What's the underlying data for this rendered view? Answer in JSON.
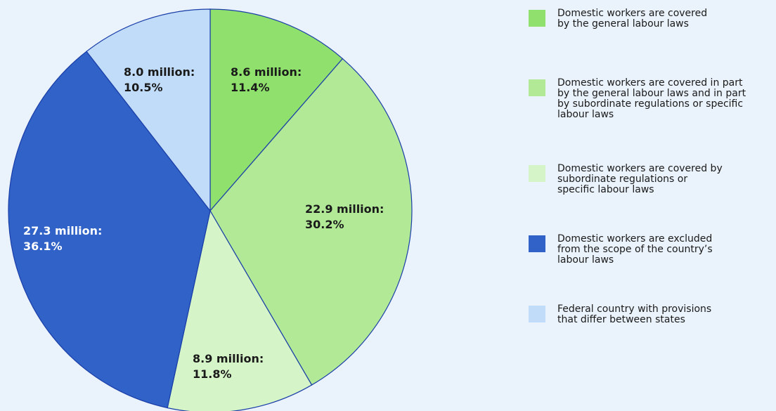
{
  "chart_data": {
    "type": "pie",
    "slices": [
      {
        "category": "Domestic workers are covered\nby the general labour laws",
        "value_millions": 8.6,
        "percent": 11.4,
        "label": "8.6 million:\n11.4%",
        "color": "#8fe06c",
        "label_color": "#1a1a1a"
      },
      {
        "category": "Domestic workers are covered in part\nby the general labour laws and in part\nby subordinate regulations or specific\nlabour laws",
        "value_millions": 22.9,
        "percent": 30.2,
        "label": "22.9 million:\n30.2%",
        "color": "#b1e997",
        "label_color": "#1a1a1a"
      },
      {
        "category": "Domestic workers are covered by\nsubordinate regulations or\nspecific labour laws",
        "value_millions": 8.9,
        "percent": 11.8,
        "label": "8.9 million:\n11.8%",
        "color": "#d5f4c7",
        "label_color": "#1a1a1a"
      },
      {
        "category": "Domestic workers are excluded\nfrom the scope of the country’s\nlabour laws",
        "value_millions": 27.3,
        "percent": 36.1,
        "label": "27.3 million:\n36.1%",
        "color": "#3062c8",
        "label_color": "#ffffff"
      },
      {
        "category": "Federal country with provisions\nthat differ between states",
        "value_millions": 8.0,
        "percent": 10.5,
        "label": "8.0 million:\n10.5%",
        "color": "#c1dcf8",
        "label_color": "#1a1a1a"
      }
    ],
    "start_angle": "12 o'clock",
    "direction": "clockwise",
    "legend_position": "right",
    "slice_border_color": "#1a3ea8",
    "background_color": "#eaf2fb"
  }
}
